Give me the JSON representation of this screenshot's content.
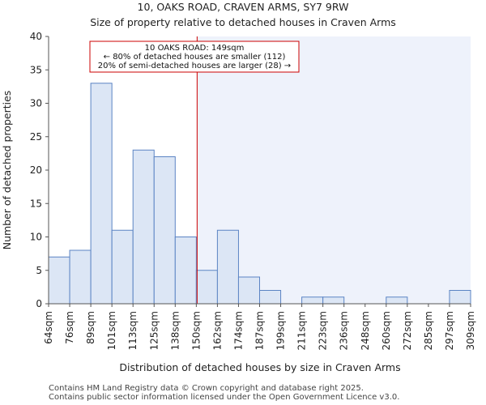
{
  "chart_data": {
    "type": "bar",
    "title": "10, OAKS ROAD, CRAVEN ARMS, SY7 9RW",
    "subtitle": "Size of property relative to detached houses in Craven Arms",
    "xlabel": "Distribution of detached houses by size in Craven Arms",
    "ylabel": "Number of detached properties",
    "x_tick_labels": [
      "64sqm",
      "76sqm",
      "89sqm",
      "101sqm",
      "113sqm",
      "125sqm",
      "138sqm",
      "150sqm",
      "162sqm",
      "174sqm",
      "187sqm",
      "199sqm",
      "211sqm",
      "223sqm",
      "236sqm",
      "248sqm",
      "260sqm",
      "272sqm",
      "285sqm",
      "297sqm",
      "309sqm"
    ],
    "values": [
      7,
      8,
      33,
      11,
      23,
      22,
      10,
      5,
      11,
      4,
      2,
      0,
      1,
      1,
      0,
      0,
      1,
      0,
      0,
      2
    ],
    "ylim": [
      0,
      40
    ],
    "yticks": [
      0,
      5,
      10,
      15,
      20,
      25,
      30,
      35,
      40
    ],
    "bar_fill": "#dce6f5",
    "bar_stroke": "#5b84c4",
    "highlight_fill": "#eef2fb",
    "marker": {
      "value_label": "149sqm",
      "bin_position": 7.0,
      "color": "#cc0000",
      "lines": [
        "10 OAKS ROAD: 149sqm",
        "← 80% of detached houses are smaller (112)",
        "20% of semi-detached houses are larger (28) →"
      ]
    },
    "grid": false
  },
  "footer": {
    "line1": "Contains HM Land Registry data © Crown copyright and database right 2025.",
    "line2": "Contains public sector information licensed under the Open Government Licence v3.0."
  }
}
